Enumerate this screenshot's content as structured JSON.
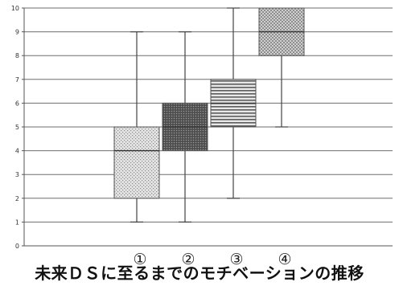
{
  "caption": "未来ＤＳに至るまでのモチベーションの推移",
  "chart_data": {
    "type": "box",
    "title": "未来ＤＳに至るまでのモチベーションの推移",
    "xlabel": "",
    "ylabel": "",
    "ylim": [
      0,
      10
    ],
    "y_ticks": [
      "0",
      "1",
      "2",
      "3",
      "4",
      "5",
      "6",
      "7",
      "8",
      "9",
      "10"
    ],
    "grid": true,
    "categories": [
      "①",
      "②",
      "③",
      "④"
    ],
    "boxes": [
      {
        "label": "①",
        "min": 1,
        "q1": 2,
        "median": 4,
        "q3": 5,
        "max": 9,
        "pattern": "dots-light"
      },
      {
        "label": "②",
        "min": 1,
        "q1": 4,
        "median": 5,
        "q3": 6,
        "max": 9,
        "pattern": "dots-dark"
      },
      {
        "label": "③",
        "min": 2,
        "q1": 5,
        "median": 6,
        "q3": 7,
        "max": 10,
        "pattern": "horizontal-lines"
      },
      {
        "label": "④",
        "min": 5,
        "q1": 8,
        "median": 9,
        "q3": 10,
        "max": 10,
        "pattern": "checker"
      }
    ]
  }
}
